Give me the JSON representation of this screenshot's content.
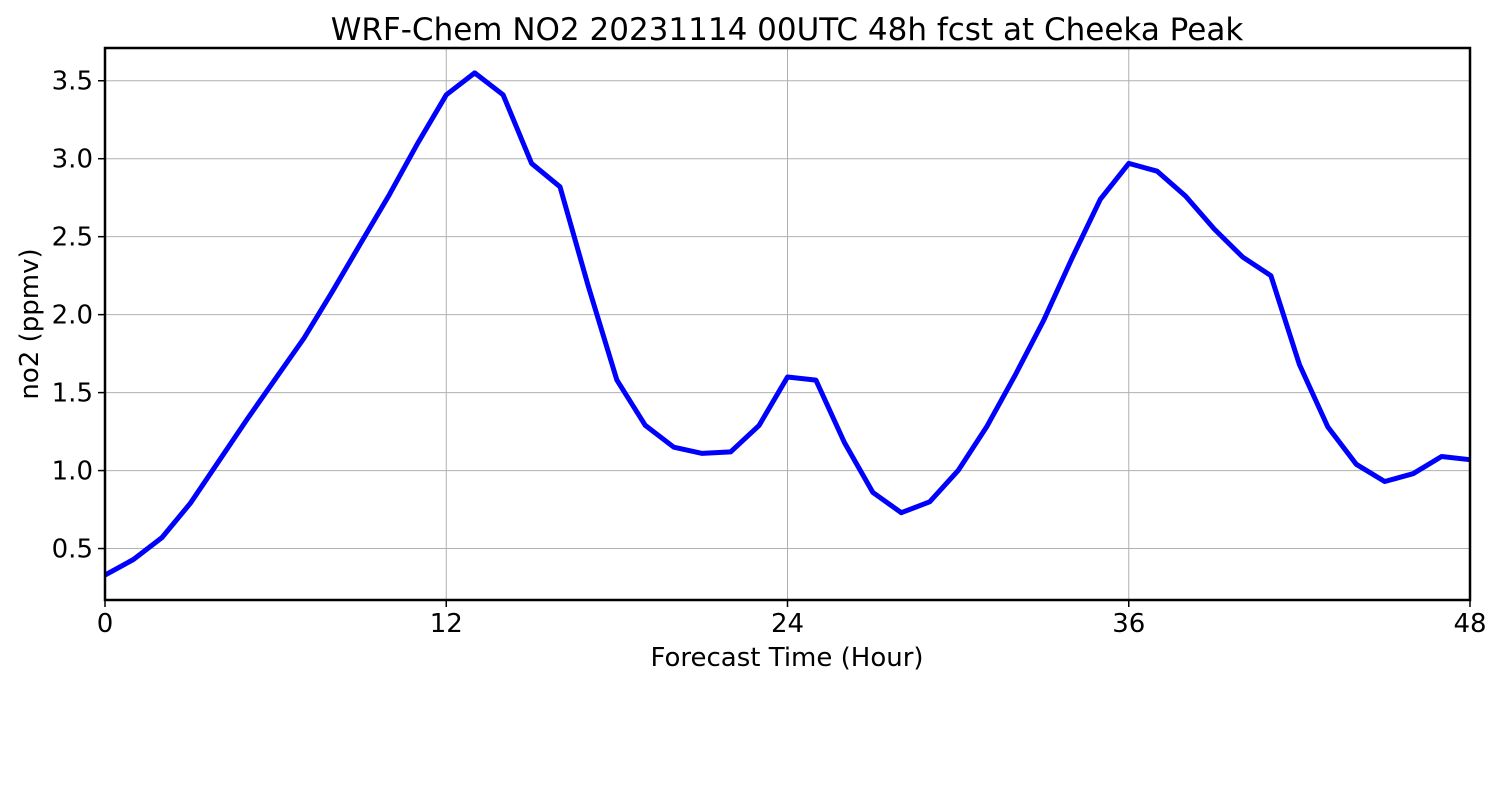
{
  "chart_data": {
    "type": "line",
    "title": "WRF-Chem NO2  20231114 00UTC 48h fcst at Cheeka Peak",
    "xlabel": "Forecast Time (Hour)",
    "ylabel": "no2  (ppmv)",
    "xlim": [
      0,
      48
    ],
    "ylim": [
      0.17,
      3.71
    ],
    "xticks": [
      0,
      12,
      24,
      36,
      48
    ],
    "yticks": [
      0.5,
      1.0,
      1.5,
      2.0,
      2.5,
      3.0,
      3.5
    ],
    "grid": true,
    "series": [
      {
        "color": "#0000ff",
        "x": [
          0,
          1,
          2,
          3,
          4,
          5,
          6,
          7,
          8,
          9,
          10,
          11,
          12,
          13,
          14,
          15,
          16,
          17,
          18,
          19,
          20,
          21,
          22,
          23,
          24,
          25,
          26,
          27,
          28,
          29,
          30,
          31,
          32,
          33,
          34,
          35,
          36,
          37,
          38,
          39,
          40,
          41,
          42,
          43,
          44,
          45,
          46,
          47,
          48
        ],
        "y": [
          0.33,
          0.43,
          0.57,
          0.79,
          1.06,
          1.33,
          1.59,
          1.85,
          2.15,
          2.46,
          2.77,
          3.1,
          3.41,
          3.55,
          3.41,
          2.97,
          2.82,
          2.18,
          1.58,
          1.29,
          1.15,
          1.11,
          1.12,
          1.29,
          1.6,
          1.58,
          1.18,
          0.86,
          0.73,
          0.8,
          1.0,
          1.28,
          1.61,
          1.96,
          2.36,
          2.74,
          2.97,
          2.92,
          2.76,
          2.55,
          2.37,
          2.25,
          1.68,
          1.28,
          1.04,
          0.93,
          0.98,
          1.09,
          1.07
        ]
      }
    ]
  }
}
